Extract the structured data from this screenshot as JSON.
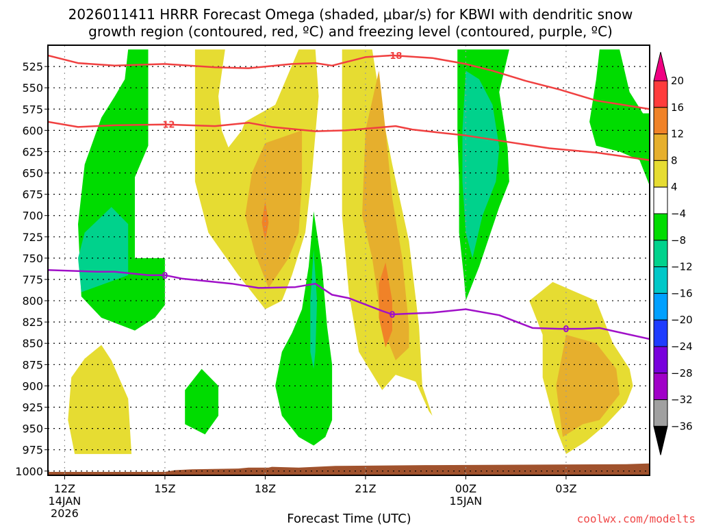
{
  "chart_data": {
    "type": "heatmap",
    "title_line1": "2026011411 HRRR Forecast Omega (shaded, μbar/s) for KBWI with dendritic snow",
    "title_line2": "growth region (contoured, red, ºC) and freezing level (contoured, purple, ºC)",
    "xlabel": "Forecast Time (UTC)",
    "ylabel": "Pressure (hPa)",
    "credit": "coolwx.com/modelts",
    "x_range_hours": [
      -0.5,
      17.5
    ],
    "x_ticks": [
      {
        "hour": 0,
        "label": "12Z",
        "sub1": "14JAN",
        "sub2": "2026"
      },
      {
        "hour": 3,
        "label": "15Z",
        "sub1": "",
        "sub2": ""
      },
      {
        "hour": 6,
        "label": "18Z",
        "sub1": "",
        "sub2": ""
      },
      {
        "hour": 9,
        "label": "21Z",
        "sub1": "",
        "sub2": ""
      },
      {
        "hour": 12,
        "label": "00Z",
        "sub1": "15JAN",
        "sub2": ""
      },
      {
        "hour": 15,
        "label": "03Z",
        "sub1": "",
        "sub2": ""
      }
    ],
    "y_range_hpa": [
      500,
      1005
    ],
    "y_ticks": [
      "525",
      "550",
      "575",
      "600",
      "625",
      "650",
      "675",
      "700",
      "725",
      "750",
      "775",
      "800",
      "825",
      "850",
      "875",
      "900",
      "925",
      "950",
      "975",
      "1000"
    ],
    "grid": true,
    "colorbar": {
      "placement": "right",
      "levels": [
        "20",
        "16",
        "12",
        "8",
        "4",
        "−4",
        "−8",
        "−12",
        "−16",
        "−20",
        "−24",
        "−28",
        "−32",
        "−36"
      ],
      "colors": [
        "#ff3c3c",
        "#f08228",
        "#e6af2d",
        "#e6dc32",
        "#ffffff",
        "#00dc00",
        "#00d28c",
        "#00c8c8",
        "#00a0ff",
        "#1e3cff",
        "#7800dc",
        "#a000c8",
        "#a0a0a0"
      ],
      "over_color": "#f00082",
      "under_color": "#000000"
    },
    "shading_colors": {
      "pos_4_8": "#e6dc32",
      "pos_8_12": "#e6af2d",
      "pos_12_16": "#f08228",
      "neg_4_8": "#00dc00",
      "neg_8_12": "#00d28c",
      "terrain": "#a0522d"
    },
    "omega_regions": [
      {
        "name": "neg-4-8-region-early",
        "level": "neg_4_8",
        "pts": [
          [
            1.9,
            505
          ],
          [
            2.5,
            505
          ],
          [
            2.5,
            618
          ],
          [
            2.1,
            655
          ],
          [
            2.1,
            750
          ],
          [
            3.0,
            750
          ],
          [
            3.0,
            805
          ],
          [
            2.7,
            820
          ],
          [
            2.1,
            835
          ],
          [
            1.1,
            820
          ],
          [
            0.5,
            795
          ],
          [
            0.4,
            710
          ],
          [
            0.6,
            640
          ],
          [
            1.1,
            585
          ],
          [
            1.5,
            560
          ],
          [
            1.8,
            540
          ]
        ]
      },
      {
        "name": "neg-8-12-region-early",
        "level": "neg_8_12",
        "pts": [
          [
            0.6,
            720
          ],
          [
            1.4,
            690
          ],
          [
            1.9,
            710
          ],
          [
            1.9,
            770
          ],
          [
            1.2,
            780
          ],
          [
            0.5,
            790
          ],
          [
            0.4,
            750
          ]
        ]
      },
      {
        "name": "pos-4-8-region-low-left",
        "level": "pos_4_8",
        "pts": [
          [
            1.1,
            852
          ],
          [
            1.4,
            870
          ],
          [
            1.9,
            915
          ],
          [
            2.0,
            980
          ],
          [
            0.3,
            980
          ],
          [
            0.1,
            940
          ],
          [
            0.2,
            890
          ],
          [
            0.6,
            868
          ]
        ]
      },
      {
        "name": "neg-4-8-region-small",
        "level": "neg_4_8",
        "pts": [
          [
            4.1,
            880
          ],
          [
            4.6,
            900
          ],
          [
            4.6,
            935
          ],
          [
            4.2,
            957
          ],
          [
            3.6,
            945
          ],
          [
            3.6,
            905
          ]
        ]
      },
      {
        "name": "pos-4-8-region-18z",
        "level": "pos_4_8",
        "pts": [
          [
            3.9,
            505
          ],
          [
            4.8,
            505
          ],
          [
            4.6,
            560
          ],
          [
            4.7,
            600
          ],
          [
            4.9,
            620
          ],
          [
            5.3,
            600
          ],
          [
            5.4,
            590
          ],
          [
            6.3,
            570
          ],
          [
            7.0,
            505
          ],
          [
            7.5,
            505
          ],
          [
            7.6,
            560
          ],
          [
            7.4,
            650
          ],
          [
            7.2,
            720
          ],
          [
            6.8,
            770
          ],
          [
            6.5,
            800
          ],
          [
            6.0,
            810
          ],
          [
            5.2,
            770
          ],
          [
            4.3,
            720
          ],
          [
            3.9,
            660
          ],
          [
            3.9,
            600
          ]
        ]
      },
      {
        "name": "pos-8-12-region-18z",
        "level": "pos_8_12",
        "pts": [
          [
            7.1,
            600
          ],
          [
            7.1,
            660
          ],
          [
            7.0,
            720
          ],
          [
            6.7,
            750
          ],
          [
            6.1,
            785
          ],
          [
            5.7,
            745
          ],
          [
            5.4,
            700
          ],
          [
            5.6,
            650
          ],
          [
            6.0,
            615
          ]
        ]
      },
      {
        "name": "pos-12-16-region-18z",
        "level": "pos_12_16",
        "pts": [
          [
            6.0,
            683
          ],
          [
            6.1,
            708
          ],
          [
            6.0,
            730
          ],
          [
            5.9,
            708
          ]
        ]
      },
      {
        "name": "neg-4-8-region-20z",
        "level": "neg_4_8",
        "pts": [
          [
            7.45,
            695
          ],
          [
            7.7,
            760
          ],
          [
            7.85,
            830
          ],
          [
            8.0,
            875
          ],
          [
            8.0,
            940
          ],
          [
            7.8,
            960
          ],
          [
            7.45,
            970
          ],
          [
            7.0,
            960
          ],
          [
            6.5,
            935
          ],
          [
            6.3,
            900
          ],
          [
            6.5,
            860
          ],
          [
            6.8,
            838
          ],
          [
            7.1,
            810
          ],
          [
            7.3,
            760
          ]
        ]
      },
      {
        "name": "neg-8-12-region-20z",
        "level": "neg_8_12",
        "pts": [
          [
            7.45,
            740
          ],
          [
            7.55,
            800
          ],
          [
            7.5,
            860
          ],
          [
            7.45,
            880
          ],
          [
            7.35,
            860
          ],
          [
            7.35,
            800
          ]
        ]
      },
      {
        "name": "pos-4-8-region-22z",
        "level": "pos_4_8",
        "pts": [
          [
            8.3,
            505
          ],
          [
            9.2,
            505
          ],
          [
            9.5,
            580
          ],
          [
            9.8,
            640
          ],
          [
            10.3,
            730
          ],
          [
            10.6,
            830
          ],
          [
            10.7,
            900
          ],
          [
            11.0,
            935
          ],
          [
            10.9,
            930
          ],
          [
            10.5,
            895
          ],
          [
            9.9,
            887
          ],
          [
            9.5,
            905
          ],
          [
            8.8,
            860
          ],
          [
            8.5,
            790
          ],
          [
            8.3,
            700
          ]
        ]
      },
      {
        "name": "pos-8-12-region-22z",
        "level": "pos_8_12",
        "pts": [
          [
            9.4,
            530
          ],
          [
            9.6,
            600
          ],
          [
            9.8,
            680
          ],
          [
            10.1,
            750
          ],
          [
            10.3,
            830
          ],
          [
            10.3,
            855
          ],
          [
            9.9,
            870
          ],
          [
            9.5,
            830
          ],
          [
            9.2,
            750
          ],
          [
            8.9,
            700
          ],
          [
            9.0,
            600
          ]
        ]
      },
      {
        "name": "pos-12-16-region-22z",
        "level": "pos_12_16",
        "pts": [
          [
            9.6,
            755
          ],
          [
            9.8,
            800
          ],
          [
            9.8,
            835
          ],
          [
            9.6,
            855
          ],
          [
            9.4,
            820
          ],
          [
            9.4,
            780
          ]
        ]
      },
      {
        "name": "neg-4-8-region-00z",
        "level": "neg_4_8",
        "pts": [
          [
            11.75,
            505
          ],
          [
            13.3,
            505
          ],
          [
            13.0,
            555
          ],
          [
            13.25,
            620
          ],
          [
            13.3,
            660
          ],
          [
            13.0,
            690
          ],
          [
            12.4,
            760
          ],
          [
            12.0,
            800
          ],
          [
            11.95,
            775
          ],
          [
            11.8,
            720
          ],
          [
            11.8,
            660
          ],
          [
            11.75,
            600
          ]
        ]
      },
      {
        "name": "neg-8-12-region-00z",
        "level": "neg_8_12",
        "pts": [
          [
            12.0,
            530
          ],
          [
            12.4,
            540
          ],
          [
            12.8,
            570
          ],
          [
            13.0,
            620
          ],
          [
            12.9,
            660
          ],
          [
            12.5,
            700
          ],
          [
            12.2,
            750
          ],
          [
            12.0,
            720
          ],
          [
            11.9,
            660
          ],
          [
            11.9,
            600
          ]
        ]
      },
      {
        "name": "neg-4-8-region-right",
        "level": "neg_4_8",
        "pts": [
          [
            16.0,
            505
          ],
          [
            16.6,
            505
          ],
          [
            16.9,
            555
          ],
          [
            17.3,
            580
          ],
          [
            17.5,
            580
          ],
          [
            17.5,
            665
          ],
          [
            17.2,
            635
          ],
          [
            16.6,
            625
          ],
          [
            15.9,
            618
          ],
          [
            15.7,
            590
          ],
          [
            15.9,
            540
          ]
        ]
      },
      {
        "name": "pos-4-8-region-03z",
        "level": "pos_4_8",
        "pts": [
          [
            14.6,
            778
          ],
          [
            15.3,
            790
          ],
          [
            15.9,
            800
          ],
          [
            16.4,
            850
          ],
          [
            16.9,
            880
          ],
          [
            17.0,
            900
          ],
          [
            16.8,
            920
          ],
          [
            16.2,
            945
          ],
          [
            15.6,
            965
          ],
          [
            15.0,
            980
          ],
          [
            14.7,
            950
          ],
          [
            14.3,
            890
          ],
          [
            14.3,
            840
          ],
          [
            13.9,
            800
          ]
        ]
      },
      {
        "name": "pos-8-12-region-03z",
        "level": "pos_8_12",
        "pts": [
          [
            15.0,
            840
          ],
          [
            15.9,
            850
          ],
          [
            16.5,
            880
          ],
          [
            16.6,
            910
          ],
          [
            16.0,
            940
          ],
          [
            15.5,
            945
          ],
          [
            14.9,
            960
          ],
          [
            14.7,
            900
          ]
        ]
      }
    ],
    "terrain": {
      "hours": [
        -0.5,
        3.0,
        3.3,
        3.8,
        5.2,
        5.5,
        6.1,
        6.2,
        7.0,
        7.5,
        8.1,
        10.8,
        11.0,
        16.8,
        17.5
      ],
      "pressure_hpa": [
        1001,
        1001,
        999,
        998,
        997,
        996,
        996,
        995,
        996,
        995,
        994,
        993,
        993,
        992,
        991
      ]
    },
    "series": [
      {
        "name": "dgz-minus-18C",
        "color": "#f04040",
        "label": "−18",
        "label_at_hour": 9.8,
        "x": [
          -0.5,
          0.4,
          1.5,
          3.0,
          4.5,
          5.5,
          6.8,
          7.5,
          8.0,
          9.0,
          9.8,
          11.0,
          12.0,
          12.8,
          13.8,
          14.8,
          15.9,
          17.5
        ],
        "y": [
          512,
          521,
          524,
          522,
          526,
          527,
          522,
          521,
          524,
          514,
          512,
          515,
          522,
          530,
          542,
          552,
          565,
          575
        ]
      },
      {
        "name": "dgz-minus-12C",
        "color": "#f04040",
        "label": "−12",
        "label_at_hour": 3.0,
        "x": [
          -0.5,
          0.4,
          1.5,
          3.0,
          4.5,
          5.5,
          6.2,
          7.5,
          8.4,
          9.9,
          10.4,
          11.3,
          12.0,
          13.0,
          14.5,
          15.9,
          17.5
        ],
        "y": [
          590,
          596,
          594,
          593,
          595,
          591,
          596,
          601,
          600,
          595,
          599,
          603,
          606,
          612,
          621,
          626,
          635
        ]
      },
      {
        "name": "freezing-level-0C",
        "color": "#a010c8",
        "label": "0",
        "label_at_hour": 3.0,
        "x": [
          -0.5,
          1.0,
          1.5,
          2.5,
          3.0,
          3.5,
          4.0,
          5.0,
          5.8,
          6.9,
          7.5,
          8.0,
          8.5,
          9.5,
          9.8,
          11.0,
          12.0,
          13.0,
          14.0,
          14.8,
          15.5,
          16.0,
          17.5
        ],
        "y": [
          764,
          766,
          766,
          770,
          770,
          774,
          776,
          780,
          785,
          784,
          780,
          793,
          797,
          812,
          816,
          814,
          810,
          817,
          832,
          833,
          833,
          832,
          845
        ]
      }
    ],
    "contour_labels": [
      {
        "text": "−18",
        "hour": 9.8,
        "pressure_hpa": 512,
        "color": "#f04040"
      },
      {
        "text": "−12",
        "hour": 3.0,
        "pressure_hpa": 593,
        "color": "#f04040"
      },
      {
        "text": "0",
        "hour": 3.0,
        "pressure_hpa": 770,
        "color": "#a010c8"
      },
      {
        "text": "0",
        "hour": 9.8,
        "pressure_hpa": 816,
        "color": "#a010c8"
      },
      {
        "text": "0",
        "hour": 15.0,
        "pressure_hpa": 833,
        "color": "#a010c8"
      }
    ]
  }
}
